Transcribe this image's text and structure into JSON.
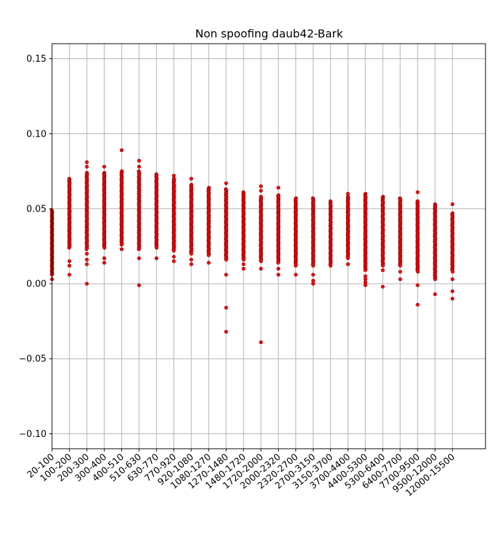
{
  "chart_data": {
    "type": "scatter",
    "title": "Non spoofing daub42-Bark",
    "xlabel": "",
    "ylabel": "",
    "ylim": [
      -0.11,
      0.16
    ],
    "yticks": [
      -0.1,
      -0.05,
      0.0,
      0.05,
      0.1,
      0.15
    ],
    "ytick_labels": [
      "−0.10",
      "−0.05",
      "0.00",
      "0.05",
      "0.10",
      "0.15"
    ],
    "categories": [
      "20-100",
      "100-200",
      "200-300",
      "300-400",
      "400-510",
      "510-630",
      "630-770",
      "770-920",
      "920-1080",
      "1080-1270",
      "1270-1480",
      "1480-1720",
      "1720-2000",
      "2000-2320",
      "2320-2700",
      "2700-3150",
      "3150-3700",
      "3700-4400",
      "4400-5300",
      "5300-6400",
      "6400-7700",
      "7700-9500",
      "9500-12000",
      "12000-15500"
    ],
    "grid": true,
    "marker_color": "#ff0000",
    "marker_edge_color": "#8b0000",
    "series": [
      {
        "values": [
          {
            "dense": [
              0.006,
              0.049
            ],
            "outliers": [
              0.003
            ]
          },
          {
            "dense": [
              0.024,
              0.07
            ],
            "outliers": [
              0.006,
              0.012,
              0.015
            ]
          },
          {
            "dense": [
              0.023,
              0.074
            ],
            "outliers": [
              0.0,
              0.013,
              0.016,
              0.02,
              0.078,
              0.081
            ]
          },
          {
            "dense": [
              0.024,
              0.074
            ],
            "outliers": [
              0.014,
              0.017,
              0.078
            ]
          },
          {
            "dense": [
              0.026,
              0.075
            ],
            "outliers": [
              0.023,
              0.089
            ]
          },
          {
            "dense": [
              0.023,
              0.075
            ],
            "outliers": [
              -0.001,
              0.017,
              0.078,
              0.082
            ]
          },
          {
            "dense": [
              0.024,
              0.073
            ],
            "outliers": [
              0.017
            ]
          },
          {
            "dense": [
              0.022,
              0.07
            ],
            "outliers": [
              0.015,
              0.018,
              0.072
            ]
          },
          {
            "dense": [
              0.02,
              0.066
            ],
            "outliers": [
              0.013,
              0.016,
              0.07
            ]
          },
          {
            "dense": [
              0.019,
              0.064
            ],
            "outliers": [
              0.014
            ]
          },
          {
            "dense": [
              0.016,
              0.063
            ],
            "outliers": [
              -0.032,
              -0.016,
              0.006,
              0.067
            ]
          },
          {
            "dense": [
              0.016,
              0.061
            ],
            "outliers": [
              0.01,
              0.013
            ]
          },
          {
            "dense": [
              0.015,
              0.058
            ],
            "outliers": [
              -0.039,
              0.01,
              0.062,
              0.065
            ]
          },
          {
            "dense": [
              0.014,
              0.059
            ],
            "outliers": [
              0.006,
              0.01,
              0.064
            ]
          },
          {
            "dense": [
              0.012,
              0.057
            ],
            "outliers": [
              0.006
            ]
          },
          {
            "dense": [
              0.012,
              0.057
            ],
            "outliers": [
              0.0,
              0.002,
              0.006
            ]
          },
          {
            "dense": [
              0.012,
              0.055
            ],
            "outliers": []
          },
          {
            "dense": [
              0.017,
              0.058
            ],
            "outliers": [
              0.013,
              0.06
            ]
          },
          {
            "dense": [
              0.009,
              0.06
            ],
            "outliers": [
              -0.001,
              0.001,
              0.003,
              0.005
            ]
          },
          {
            "dense": [
              0.012,
              0.058
            ],
            "outliers": [
              -0.002,
              0.009
            ]
          },
          {
            "dense": [
              0.012,
              0.057
            ],
            "outliers": [
              0.003,
              0.008
            ]
          },
          {
            "dense": [
              0.008,
              0.055
            ],
            "outliers": [
              -0.014,
              -0.001,
              0.061
            ]
          },
          {
            "dense": [
              0.003,
              0.053
            ],
            "outliers": [
              -0.007
            ]
          },
          {
            "dense": [
              0.008,
              0.047
            ],
            "outliers": [
              -0.01,
              -0.005,
              0.003,
              0.053
            ]
          }
        ]
      }
    ]
  }
}
